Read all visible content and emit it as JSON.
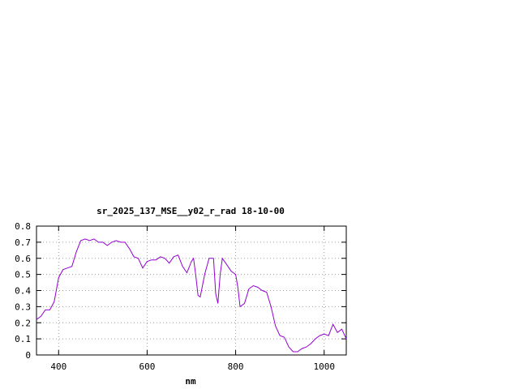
{
  "chart_data": {
    "type": "line",
    "title": "sr_2025_137_MSE__y02_r_rad 18-10-00",
    "xlabel": "nm",
    "ylabel": "",
    "xlim": [
      350,
      1050
    ],
    "ylim": [
      0,
      0.8
    ],
    "x_ticks": [
      400,
      600,
      800,
      1000
    ],
    "x_tick_labels": [
      "400",
      "600",
      "800",
      "1000"
    ],
    "y_ticks": [
      0,
      0.1,
      0.2,
      0.3,
      0.4,
      0.5,
      0.6,
      0.7,
      0.8
    ],
    "y_tick_labels": [
      "0",
      "0.1",
      "0.2",
      "0.3",
      "0.4",
      "0.5",
      "0.6",
      "0.7",
      "0.8"
    ],
    "grid": true,
    "line_color": "#9400d3",
    "series": [
      {
        "x": [
          350,
          360,
          370,
          380,
          390,
          400,
          410,
          420,
          430,
          440,
          450,
          460,
          470,
          480,
          490,
          500,
          510,
          520,
          530,
          540,
          550,
          560,
          570,
          580,
          590,
          600,
          610,
          620,
          630,
          640,
          650,
          660,
          670,
          680,
          690,
          700,
          705,
          710,
          715,
          720,
          730,
          740,
          750,
          755,
          760,
          765,
          770,
          780,
          790,
          800,
          805,
          810,
          820,
          830,
          840,
          850,
          860,
          870,
          880,
          890,
          900,
          910,
          920,
          930,
          940,
          950,
          960,
          970,
          980,
          990,
          1000,
          1010,
          1020,
          1030,
          1040,
          1050
        ],
        "y": [
          0.22,
          0.24,
          0.28,
          0.28,
          0.33,
          0.48,
          0.53,
          0.54,
          0.55,
          0.64,
          0.71,
          0.72,
          0.71,
          0.72,
          0.7,
          0.7,
          0.68,
          0.7,
          0.71,
          0.7,
          0.7,
          0.66,
          0.61,
          0.6,
          0.54,
          0.58,
          0.59,
          0.59,
          0.61,
          0.6,
          0.57,
          0.61,
          0.62,
          0.55,
          0.51,
          0.58,
          0.6,
          0.49,
          0.37,
          0.36,
          0.5,
          0.6,
          0.6,
          0.38,
          0.32,
          0.5,
          0.6,
          0.56,
          0.52,
          0.5,
          0.42,
          0.3,
          0.32,
          0.41,
          0.43,
          0.42,
          0.4,
          0.39,
          0.3,
          0.18,
          0.12,
          0.11,
          0.05,
          0.02,
          0.02,
          0.04,
          0.05,
          0.07,
          0.1,
          0.12,
          0.13,
          0.12,
          0.19,
          0.14,
          0.16,
          0.1
        ]
      }
    ]
  }
}
